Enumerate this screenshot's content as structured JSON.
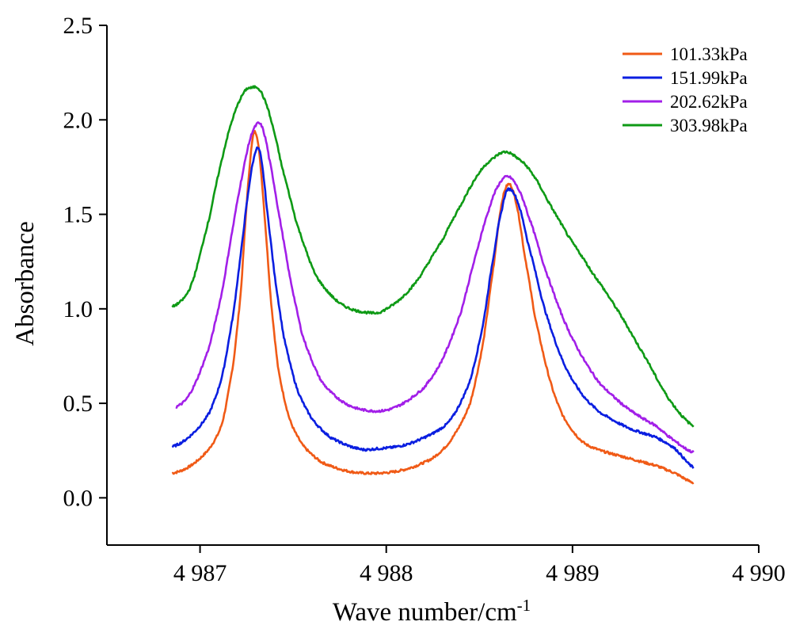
{
  "chart_data": {
    "type": "line",
    "title": "",
    "xlabel_main": "Wave number/cm",
    "xlabel_sup": "-1",
    "ylabel": "Absorbance",
    "xlim": [
      4986.5,
      4990
    ],
    "ylim": [
      -0.25,
      2.5
    ],
    "xticks": [
      4987,
      4988,
      4989,
      4990
    ],
    "xtick_labels": [
      "4 987",
      "4 988",
      "4 989",
      "4 990"
    ],
    "yticks": [
      0.0,
      0.5,
      1.0,
      1.5,
      2.0,
      2.5
    ],
    "ytick_labels": [
      "0.0",
      "0.5",
      "1.0",
      "1.5",
      "2.0",
      "2.5"
    ],
    "grid": false,
    "legend_position": "top-right",
    "series": [
      {
        "name": "101.33kPa",
        "color": "#f05a16",
        "x": [
          4986.85,
          4986.95,
          4987.05,
          4987.12,
          4987.18,
          4987.22,
          4987.25,
          4987.28,
          4987.3,
          4987.32,
          4987.35,
          4987.38,
          4987.42,
          4987.48,
          4987.55,
          4987.65,
          4987.8,
          4987.95,
          4988.1,
          4988.25,
          4988.35,
          4988.45,
          4988.52,
          4988.58,
          4988.62,
          4988.66,
          4988.7,
          4988.74,
          4988.8,
          4988.88,
          4988.95,
          4989.05,
          4989.15,
          4989.3,
          4989.45,
          4989.55,
          4989.65
        ],
        "y": [
          0.13,
          0.17,
          0.26,
          0.4,
          0.72,
          1.1,
          1.55,
          1.88,
          1.93,
          1.8,
          1.45,
          1.05,
          0.68,
          0.42,
          0.28,
          0.19,
          0.14,
          0.13,
          0.15,
          0.21,
          0.31,
          0.5,
          0.82,
          1.25,
          1.56,
          1.66,
          1.55,
          1.3,
          0.95,
          0.62,
          0.43,
          0.3,
          0.25,
          0.21,
          0.17,
          0.13,
          0.08
        ]
      },
      {
        "name": "151.99kPa",
        "color": "#0a1ee0",
        "x": [
          4986.85,
          4986.95,
          4987.05,
          4987.12,
          4987.18,
          4987.22,
          4987.26,
          4987.29,
          4987.31,
          4987.33,
          4987.36,
          4987.4,
          4987.45,
          4987.52,
          4987.6,
          4987.7,
          4987.85,
          4987.95,
          4988.1,
          4988.25,
          4988.35,
          4988.45,
          4988.52,
          4988.58,
          4988.62,
          4988.65,
          4988.7,
          4988.76,
          4988.85,
          4988.95,
          4989.05,
          4989.15,
          4989.3,
          4989.45,
          4989.55,
          4989.65
        ],
        "y": [
          0.27,
          0.33,
          0.45,
          0.65,
          0.98,
          1.3,
          1.62,
          1.8,
          1.85,
          1.78,
          1.52,
          1.18,
          0.85,
          0.58,
          0.42,
          0.32,
          0.26,
          0.26,
          0.28,
          0.34,
          0.42,
          0.62,
          0.92,
          1.3,
          1.52,
          1.63,
          1.58,
          1.35,
          1.0,
          0.72,
          0.55,
          0.45,
          0.37,
          0.32,
          0.26,
          0.16
        ]
      },
      {
        "name": "202.62kPa",
        "color": "#a21fe8",
        "x": [
          4986.87,
          4986.95,
          4987.05,
          4987.12,
          4987.18,
          4987.23,
          4987.27,
          4987.3,
          4987.32,
          4987.34,
          4987.37,
          4987.42,
          4987.48,
          4987.55,
          4987.65,
          4987.78,
          4987.92,
          4988.05,
          4988.2,
          4988.3,
          4988.4,
          4988.48,
          4988.55,
          4988.6,
          4988.65,
          4988.7,
          4988.76,
          4988.85,
          4988.95,
          4989.05,
          4989.15,
          4989.3,
          4989.45,
          4989.55,
          4989.65
        ],
        "y": [
          0.48,
          0.56,
          0.8,
          1.1,
          1.45,
          1.72,
          1.9,
          1.97,
          1.98,
          1.94,
          1.8,
          1.52,
          1.18,
          0.86,
          0.62,
          0.5,
          0.46,
          0.48,
          0.58,
          0.73,
          0.98,
          1.28,
          1.52,
          1.65,
          1.7,
          1.65,
          1.5,
          1.22,
          0.95,
          0.75,
          0.6,
          0.47,
          0.38,
          0.3,
          0.24
        ]
      },
      {
        "name": "303.98kPa",
        "color": "#0e9a15",
        "x": [
          4986.85,
          4986.95,
          4987.05,
          4987.12,
          4987.18,
          4987.24,
          4987.28,
          4987.31,
          4987.34,
          4987.38,
          4987.44,
          4987.52,
          4987.62,
          4987.75,
          4987.9,
          4988.0,
          4988.15,
          4988.3,
          4988.4,
          4988.5,
          4988.58,
          4988.64,
          4988.7,
          4988.78,
          4988.88,
          4988.98,
          4989.1,
          4989.25,
          4989.4,
          4989.52,
          4989.65
        ],
        "y": [
          1.01,
          1.12,
          1.48,
          1.8,
          2.02,
          2.15,
          2.17,
          2.17,
          2.12,
          2.0,
          1.75,
          1.45,
          1.18,
          1.03,
          0.98,
          1.0,
          1.13,
          1.36,
          1.55,
          1.72,
          1.8,
          1.83,
          1.8,
          1.72,
          1.55,
          1.38,
          1.2,
          0.98,
          0.73,
          0.52,
          0.38
        ]
      }
    ]
  }
}
